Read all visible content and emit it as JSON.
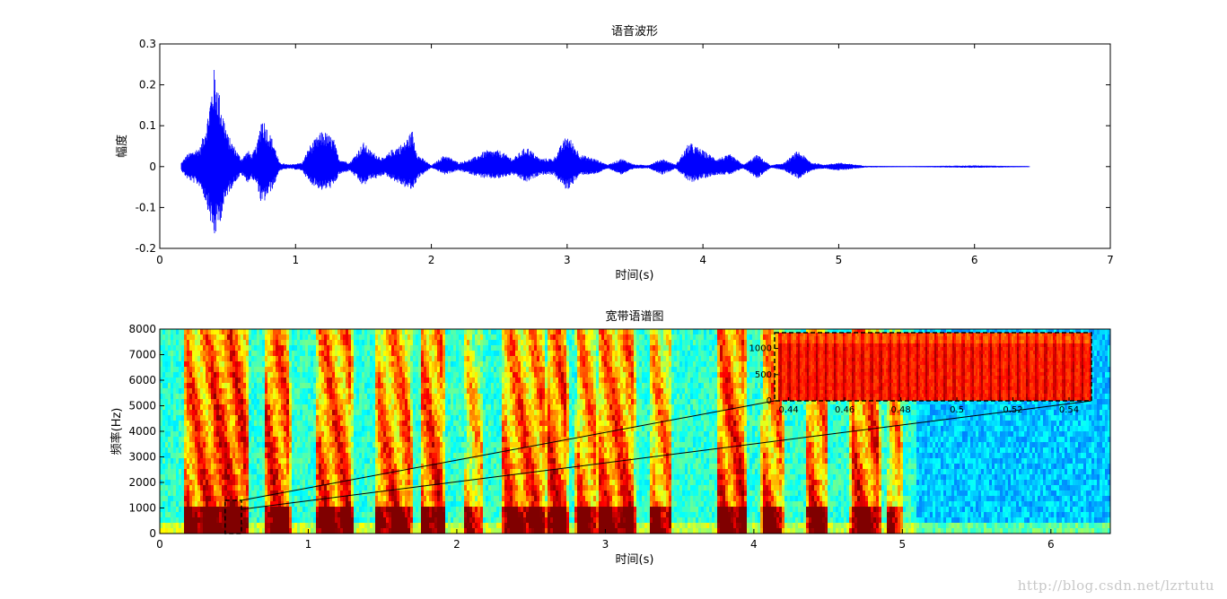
{
  "chart_data": [
    {
      "type": "line",
      "title": "语音波形",
      "xlabel": "时间(s)",
      "ylabel": "幅度",
      "xlim": [
        0,
        7
      ],
      "ylim": [
        -0.2,
        0.3
      ],
      "xticks": [
        "0",
        "1",
        "2",
        "3",
        "4",
        "5",
        "6",
        "7"
      ],
      "yticks": [
        "-0.2",
        "-0.1",
        "0",
        "0.1",
        "0.2",
        "0.3"
      ],
      "series_color": "#0000ff",
      "envelope": {
        "t": [
          0.16,
          0.2,
          0.25,
          0.3,
          0.35,
          0.4,
          0.42,
          0.45,
          0.5,
          0.55,
          0.6,
          0.65,
          0.68,
          0.72,
          0.75,
          0.8,
          0.84,
          0.88,
          0.95,
          1.05,
          1.1,
          1.2,
          1.28,
          1.32,
          1.4,
          1.5,
          1.55,
          1.6,
          1.65,
          1.7,
          1.8,
          1.86,
          1.9,
          2.0,
          2.1,
          2.2,
          2.3,
          2.4,
          2.5,
          2.6,
          2.7,
          2.8,
          2.9,
          3.0,
          3.1,
          3.2,
          3.3,
          3.4,
          3.5,
          3.6,
          3.7,
          3.8,
          3.9,
          4.0,
          4.1,
          4.2,
          4.3,
          4.4,
          4.5,
          4.6,
          4.7,
          4.8,
          4.9,
          5.0,
          5.2,
          5.5,
          6.0,
          6.4
        ],
        "top": [
          0.01,
          0.03,
          0.04,
          0.05,
          0.12,
          0.24,
          0.22,
          0.16,
          0.08,
          0.05,
          0.02,
          0.04,
          0.03,
          0.06,
          0.13,
          0.09,
          0.06,
          0.01,
          0.005,
          0.01,
          0.05,
          0.09,
          0.07,
          0.02,
          0.01,
          0.06,
          0.04,
          0.03,
          0.02,
          0.04,
          0.06,
          0.09,
          0.03,
          0.003,
          0.03,
          0.01,
          0.02,
          0.04,
          0.04,
          0.02,
          0.05,
          0.02,
          0.02,
          0.08,
          0.03,
          0.02,
          0.005,
          0.02,
          0.005,
          0.004,
          0.02,
          0.005,
          0.06,
          0.04,
          0.02,
          0.03,
          0.005,
          0.03,
          0.003,
          0.01,
          0.04,
          0.01,
          0.005,
          0.01,
          0.002,
          0.001,
          0.003,
          0.001
        ],
        "bottom": [
          -0.01,
          -0.03,
          -0.04,
          -0.05,
          -0.1,
          -0.18,
          -0.16,
          -0.13,
          -0.07,
          -0.04,
          -0.02,
          -0.04,
          -0.03,
          -0.05,
          -0.1,
          -0.07,
          -0.05,
          -0.01,
          -0.005,
          -0.01,
          -0.04,
          -0.06,
          -0.05,
          -0.02,
          -0.01,
          -0.05,
          -0.03,
          -0.03,
          -0.02,
          -0.03,
          -0.05,
          -0.06,
          -0.03,
          -0.003,
          -0.02,
          -0.01,
          -0.02,
          -0.03,
          -0.03,
          -0.02,
          -0.04,
          -0.02,
          -0.02,
          -0.06,
          -0.02,
          -0.02,
          -0.005,
          -0.02,
          -0.005,
          -0.004,
          -0.02,
          -0.005,
          -0.04,
          -0.03,
          -0.02,
          -0.02,
          -0.005,
          -0.03,
          -0.003,
          -0.01,
          -0.03,
          -0.01,
          -0.005,
          -0.01,
          -0.002,
          -0.001,
          -0.003,
          -0.001
        ]
      }
    },
    {
      "type": "heatmap",
      "title": "宽带语谱图",
      "xlabel": "时间(s)",
      "ylabel": "频率(Hz)",
      "xlim": [
        0,
        6.4
      ],
      "ylim": [
        0,
        8000
      ],
      "xticks": [
        "0",
        "1",
        "2",
        "3",
        "4",
        "5",
        "6"
      ],
      "yticks": [
        "0",
        "1000",
        "2000",
        "3000",
        "4000",
        "5000",
        "6000",
        "7000",
        "8000"
      ],
      "colormap": "jet",
      "energy_segments": [
        [
          0.16,
          0.6,
          0.9
        ],
        [
          0.34,
          0.6,
          1.0
        ],
        [
          0.7,
          0.88,
          0.95
        ],
        [
          1.05,
          1.3,
          0.9
        ],
        [
          1.45,
          1.7,
          0.85
        ],
        [
          1.75,
          1.92,
          0.9
        ],
        [
          2.05,
          2.18,
          0.6
        ],
        [
          2.3,
          2.6,
          0.85
        ],
        [
          2.6,
          2.75,
          0.95
        ],
        [
          2.8,
          2.95,
          0.8
        ],
        [
          2.95,
          3.2,
          0.9
        ],
        [
          3.3,
          3.45,
          0.75
        ],
        [
          3.75,
          3.95,
          0.95
        ],
        [
          4.05,
          4.2,
          0.8
        ],
        [
          4.35,
          4.5,
          0.85
        ],
        [
          4.65,
          4.85,
          0.9
        ],
        [
          4.9,
          5.0,
          0.7
        ]
      ],
      "zoom_box": {
        "x": [
          0.44,
          0.55
        ],
        "y": [
          0,
          1300
        ]
      },
      "inset": {
        "type": "heatmap",
        "xlim": [
          0.435,
          0.548
        ],
        "ylim": [
          0,
          1300
        ],
        "xticks": [
          "0.44",
          "0.46",
          "0.48",
          "0.5",
          "0.52",
          "0.54"
        ],
        "yticks": [
          "0",
          "500",
          "1000"
        ]
      }
    }
  ],
  "watermark": "http://blog.csdn.net/lzrtutu"
}
